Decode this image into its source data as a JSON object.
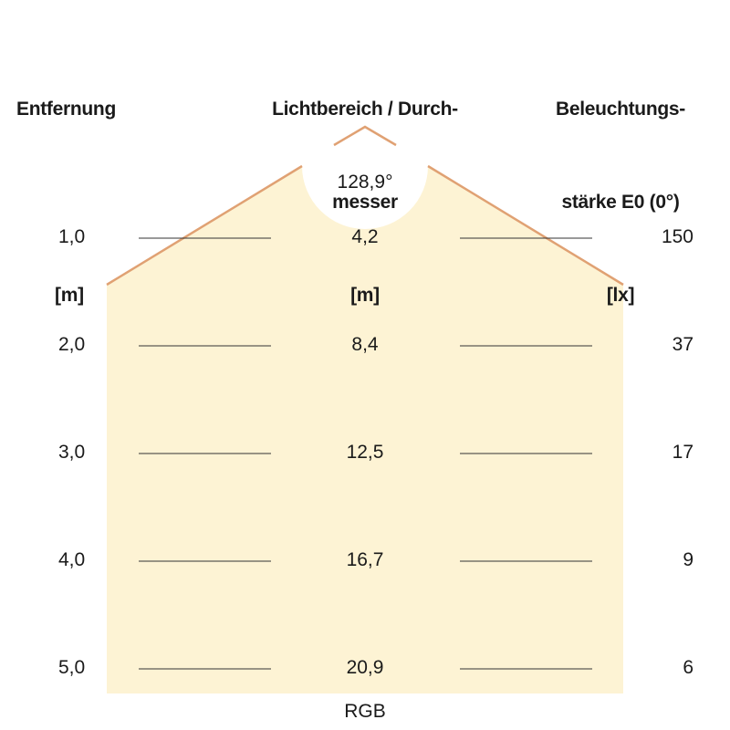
{
  "headers": {
    "distance": {
      "line1": "Entfernung",
      "unit": "[m]"
    },
    "diameter": {
      "line1": "Lichtbereich / Durch-",
      "line2": "messer",
      "unit": "[m]"
    },
    "illuminance": {
      "line1": "Beleuchtungs-",
      "line2": "stärke E0 (0°)",
      "unit": "[lx]"
    }
  },
  "beam_angle": "128,9°",
  "rows": [
    {
      "distance": "1,0",
      "diameter": "4,2",
      "illuminance": "150"
    },
    {
      "distance": "2,0",
      "diameter": "8,4",
      "illuminance": "37"
    },
    {
      "distance": "3,0",
      "diameter": "12,5",
      "illuminance": "17"
    },
    {
      "distance": "4,0",
      "diameter": "16,7",
      "illuminance": "9"
    },
    {
      "distance": "5,0",
      "diameter": "20,9",
      "illuminance": "6"
    }
  ],
  "footer": "RGB",
  "colors": {
    "light_cone": "#fdf3d4",
    "beam_edge": "#e0a173",
    "row_line": "#333333"
  }
}
